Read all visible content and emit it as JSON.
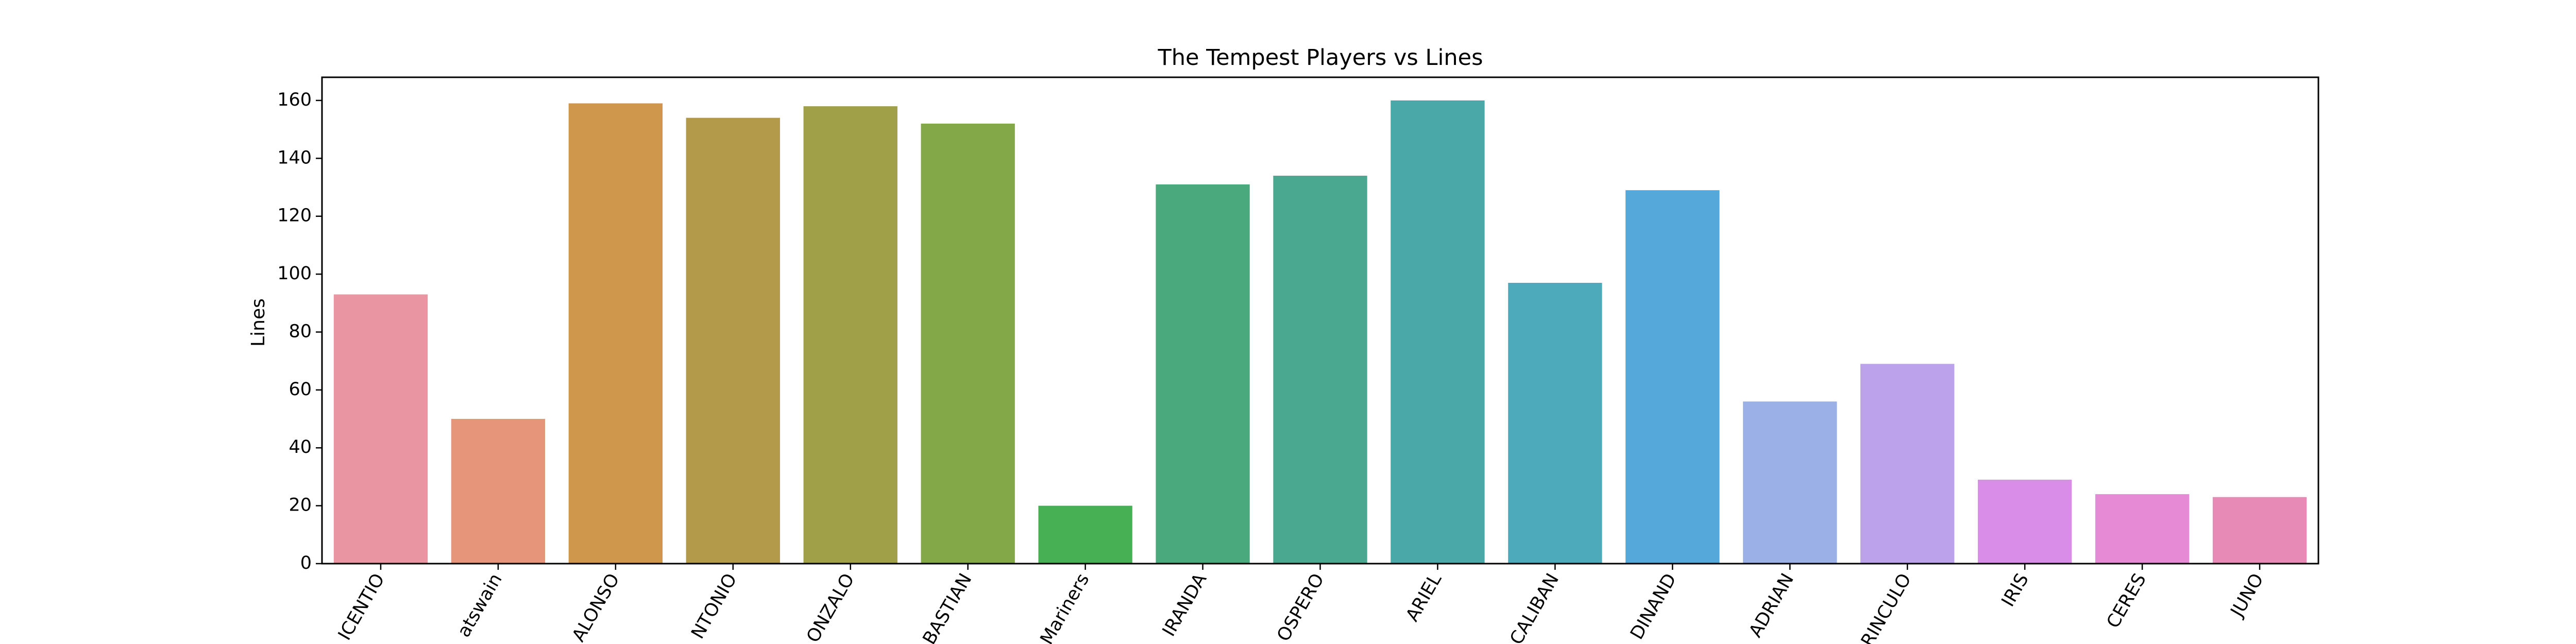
{
  "chart_data": {
    "type": "bar",
    "title": "The Tempest Players vs Lines",
    "xlabel": "",
    "ylabel": "Lines",
    "ylim": [
      0,
      168
    ],
    "yticks": [
      0,
      20,
      40,
      60,
      80,
      100,
      120,
      140,
      160
    ],
    "tick_labels_visible": [
      "ICENTIO",
      "atswain",
      "ALONSO",
      "NTONIO",
      "ONZALO",
      "BASTIAN",
      "Mariners",
      "IRANDA",
      "OSPERO",
      "ARIEL",
      "CALIBAN",
      "DINAND",
      "ADRIAN",
      "RINCULO",
      "IRIS",
      "CERES",
      "JUNO"
    ],
    "values": [
      93,
      50,
      159,
      154,
      158,
      152,
      20,
      131,
      134,
      160,
      97,
      129,
      56,
      69,
      29,
      24,
      23
    ],
    "colors": [
      "#ea96a2",
      "#e6957a",
      "#cf974c",
      "#b29a4a",
      "#9fa047",
      "#83a847",
      "#48b054",
      "#4aaa7e",
      "#4aa890",
      "#4aa9a8",
      "#4caabb",
      "#54a9da",
      "#9cb0e8",
      "#bba2ea",
      "#da8de8",
      "#e68ad5",
      "#e78bb6"
    ],
    "grid": false,
    "legend": "none"
  }
}
